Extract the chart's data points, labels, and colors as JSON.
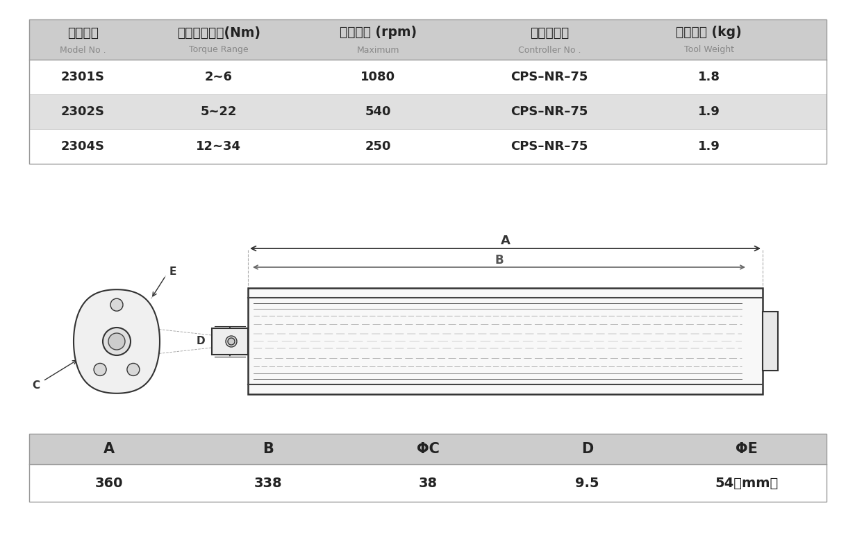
{
  "bg_color": "#ffffff",
  "table1_bg_header": "#cccccc",
  "table1_bg_row_alt": "#e0e0e0",
  "table1_bg_row_normal": "#ffffff",
  "header_cn": [
    "工具型号",
    "适应力矩范围(Nm)",
    "最大转速 (rpm)",
    "控制器型号",
    "工具重量 (kg)"
  ],
  "header_en": [
    "Model No .",
    "Torque Range",
    "Maximum",
    "Controller No .",
    "Tool Weight"
  ],
  "rows": [
    [
      "2301S",
      "2~6",
      "1080",
      "CPS–NR–75",
      "1.8"
    ],
    [
      "2302S",
      "5~22",
      "540",
      "CPS–NR–75",
      "1.9"
    ],
    [
      "2304S",
      "12~34",
      "250",
      "CPS–NR–75",
      "1.9"
    ]
  ],
  "row_shaded": [
    false,
    true,
    false
  ],
  "dim_headers": [
    "A",
    "B",
    "ΦC",
    "D",
    "ΦE"
  ],
  "dim_values": [
    "360",
    "338",
    "38",
    "9.5",
    "54（mm）"
  ],
  "table2_bg_header": "#cccccc",
  "table2_bg_row": "#ffffff",
  "text_color": "#222222",
  "gray_text": "#888888",
  "line_color": "#999999"
}
